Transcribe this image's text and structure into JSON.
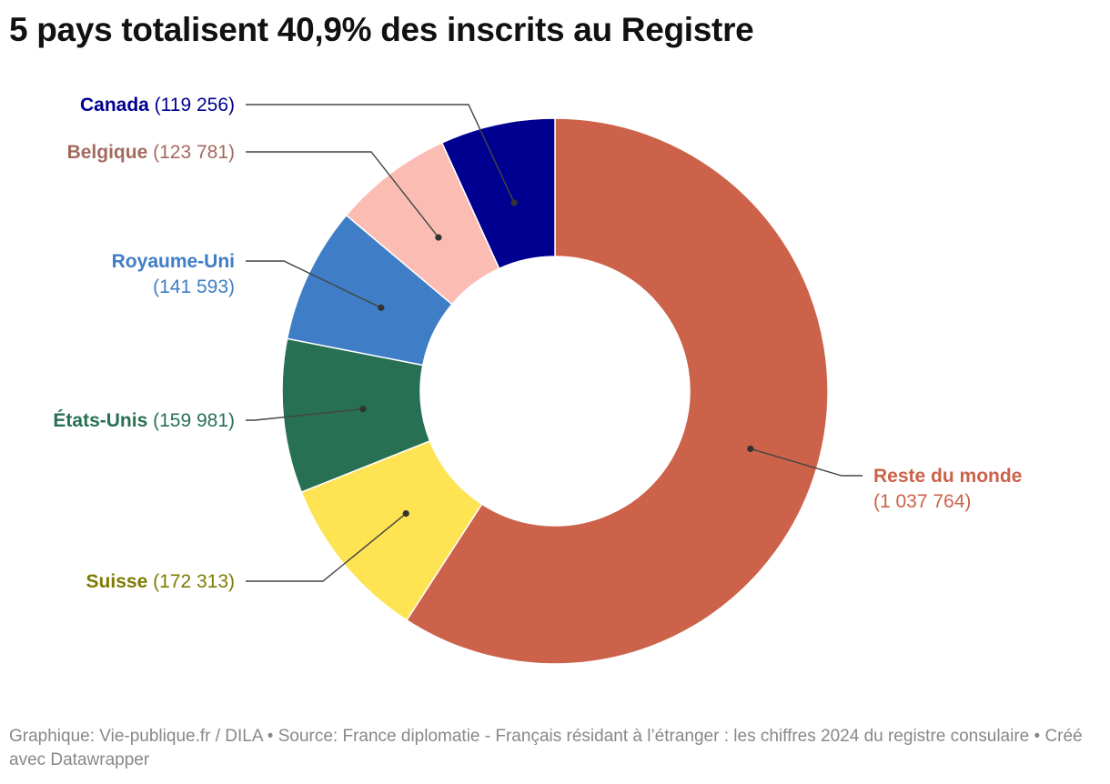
{
  "title": "5 pays totalisent 40,9% des inscrits au Registre",
  "footer": {
    "credit": "Graphique: Vie-publique.fr / DILA",
    "source": "Source: France diplomatie - Français résidant à l’étranger : les chiffres 2024 du registre consulaire",
    "tool": "Créé avec Datawrapper"
  },
  "chart_data": {
    "type": "pie",
    "variant": "donut",
    "title": "5 pays totalisent 40,9% des inscrits au Registre",
    "slices": [
      {
        "name": "Reste du monde",
        "value": 1037764,
        "display": "(1 037 764)",
        "color": "#cc624a",
        "label_color": "#cc624a"
      },
      {
        "name": "Suisse",
        "value": 172313,
        "display": "(172 313)",
        "color": "#fee352",
        "label_color": "#7e7a00"
      },
      {
        "name": "États-Unis",
        "value": 159981,
        "display": "(159 981)",
        "color": "#277053",
        "label_color": "#277053"
      },
      {
        "name": "Royaume-Uni",
        "value": 141593,
        "display": "(141 593)",
        "color": "#3f7ec6",
        "label_color": "#3f7ec6"
      },
      {
        "name": "Belgique",
        "value": 123781,
        "display": "(123 781)",
        "color": "#fbbcb4",
        "label_color": "#a36a5f"
      },
      {
        "name": "Canada",
        "value": 119256,
        "display": "(119 256)",
        "color": "#000090",
        "label_color": "#000090"
      }
    ]
  }
}
